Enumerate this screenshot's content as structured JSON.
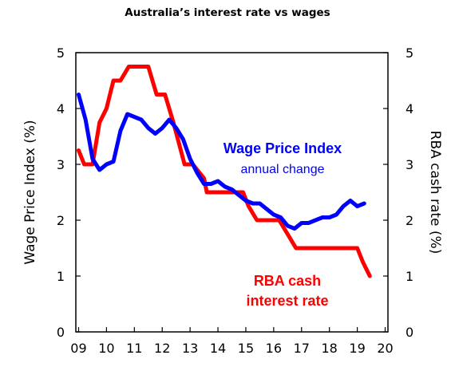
{
  "chart_data": {
    "type": "line",
    "title": "Australia’s interest rate vs wages",
    "ylabel_left": "Wage Price Index (%)",
    "ylabel_right": "RBA cash rate (%)",
    "xlabel": "",
    "ylim": [
      0,
      5
    ],
    "y_ticks": [
      "0",
      "1",
      "2",
      "3",
      "4",
      "5"
    ],
    "x_ticks": [
      "09",
      "10",
      "11",
      "12",
      "13",
      "14",
      "15",
      "16",
      "17",
      "18",
      "19",
      "20"
    ],
    "x_tick_values": [
      2009,
      2010,
      2011,
      2012,
      2013,
      2014,
      2015,
      2016,
      2017,
      2018,
      2019,
      2020
    ],
    "xlim": [
      2008.9,
      2020.1
    ],
    "grid": false,
    "series": [
      {
        "name": "RBA cash interest rate",
        "label_lines": [
          "RBA cash",
          "interest rate"
        ],
        "color": "#ff0000",
        "x": [
          2009.0,
          2009.2,
          2009.5,
          2009.75,
          2010.0,
          2010.25,
          2010.5,
          2010.8,
          2011.0,
          2011.5,
          2011.8,
          2012.1,
          2012.4,
          2012.8,
          2013.1,
          2013.5,
          2013.6,
          2014.0,
          2014.5,
          2014.9,
          2015.1,
          2015.4,
          2016.2,
          2016.5,
          2016.8,
          2017.5,
          2018.5,
          2019.0,
          2019.2,
          2019.45
        ],
        "values": [
          3.25,
          3.0,
          3.0,
          3.75,
          4.0,
          4.5,
          4.5,
          4.75,
          4.75,
          4.75,
          4.25,
          4.25,
          3.75,
          3.0,
          3.0,
          2.75,
          2.5,
          2.5,
          2.5,
          2.5,
          2.25,
          2.0,
          2.0,
          1.75,
          1.5,
          1.5,
          1.5,
          1.5,
          1.25,
          1.0
        ]
      },
      {
        "name": "Wage Price Index",
        "label_lines": [
          "Wage Price Index",
          "annual change"
        ],
        "color": "#0000ff",
        "x": [
          2009.0,
          2009.25,
          2009.5,
          2009.75,
          2010.0,
          2010.25,
          2010.5,
          2010.75,
          2011.0,
          2011.25,
          2011.5,
          2011.75,
          2012.0,
          2012.25,
          2012.5,
          2012.75,
          2013.0,
          2013.25,
          2013.5,
          2013.75,
          2014.0,
          2014.25,
          2014.5,
          2014.75,
          2015.0,
          2015.25,
          2015.5,
          2015.75,
          2016.0,
          2016.25,
          2016.5,
          2016.75,
          2017.0,
          2017.25,
          2017.5,
          2017.75,
          2018.0,
          2018.25,
          2018.5,
          2018.75,
          2019.0,
          2019.25
        ],
        "values": [
          4.25,
          3.8,
          3.1,
          2.9,
          3.0,
          3.05,
          3.6,
          3.9,
          3.85,
          3.8,
          3.65,
          3.55,
          3.65,
          3.8,
          3.65,
          3.45,
          3.1,
          2.85,
          2.65,
          2.65,
          2.7,
          2.6,
          2.55,
          2.45,
          2.35,
          2.3,
          2.3,
          2.2,
          2.1,
          2.05,
          1.9,
          1.85,
          1.95,
          1.95,
          2.0,
          2.05,
          2.05,
          2.1,
          2.25,
          2.35,
          2.25,
          2.3
        ]
      }
    ]
  }
}
